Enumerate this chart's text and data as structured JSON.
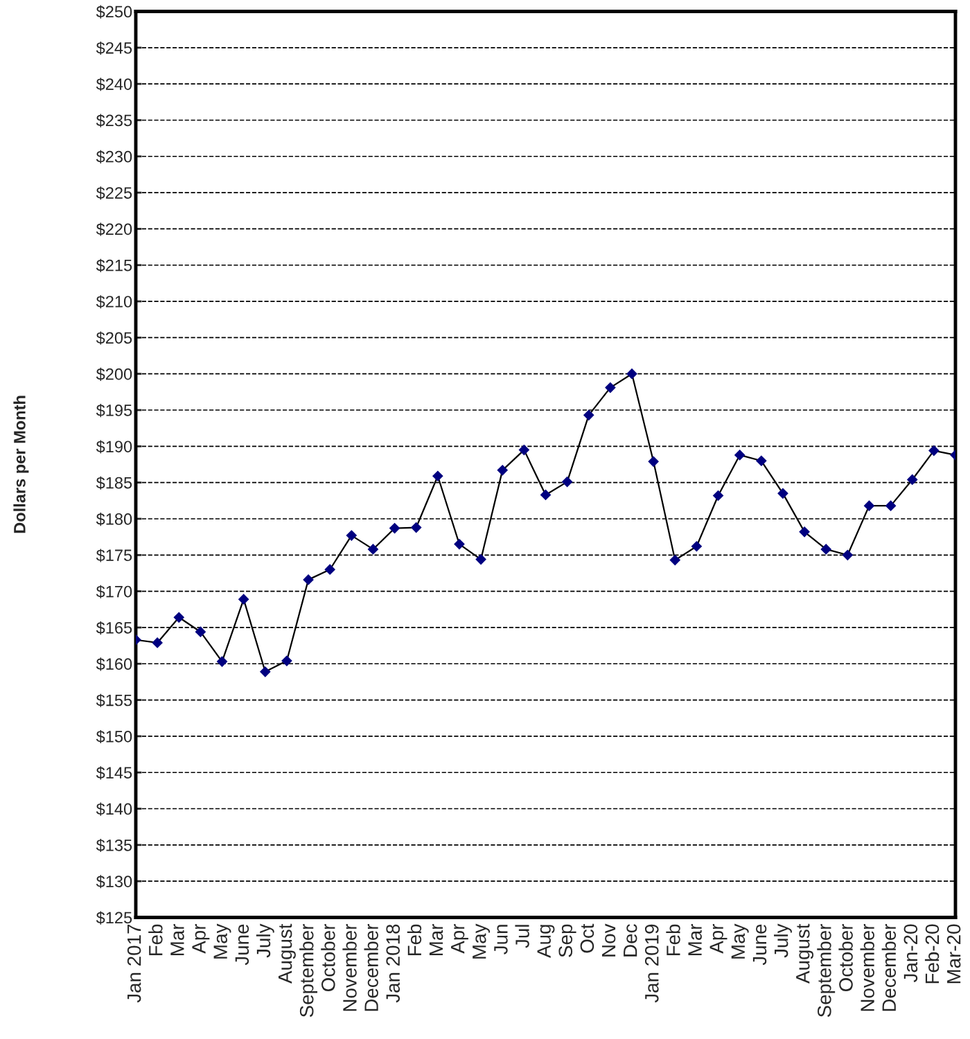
{
  "chart_data": {
    "type": "line",
    "ylabel": "Dollars per Month",
    "categories": [
      "Jan 2017",
      "Feb",
      "Mar",
      "Apr",
      "May",
      "June",
      "July",
      "August",
      "September",
      "October",
      "November",
      "December",
      "Jan 2018",
      "Feb",
      "Mar",
      "Apr",
      "May",
      "Jun",
      "Jul",
      "Aug",
      "Sep",
      "Oct",
      "Nov",
      "Dec",
      "Jan 2019",
      "Feb",
      "Mar",
      "Apr",
      "May",
      "June",
      "July",
      "August",
      "September",
      "October",
      "November",
      "December",
      "Jan-20",
      "Feb-20",
      "Mar-20"
    ],
    "series": [
      {
        "color": "#000080",
        "values": [
          163.3,
          162.9,
          166.4,
          164.4,
          160.3,
          168.9,
          158.9,
          160.4,
          171.6,
          173.0,
          177.7,
          175.8,
          178.7,
          178.8,
          185.9,
          176.5,
          174.4,
          186.7,
          189.5,
          183.3,
          185.1,
          194.3,
          198.1,
          200.0,
          187.9,
          174.3,
          176.2,
          183.2,
          188.8,
          188.0,
          183.5,
          178.2,
          175.8,
          175.0,
          181.8,
          181.8,
          185.4,
          189.4,
          188.8
        ]
      }
    ],
    "ylim": [
      125,
      250
    ],
    "yticks": [
      {
        "value": 125,
        "label": "$125"
      },
      {
        "value": 130,
        "label": "$130"
      },
      {
        "value": 135,
        "label": "$135"
      },
      {
        "value": 140,
        "label": "$140"
      },
      {
        "value": 145,
        "label": "$145"
      },
      {
        "value": 150,
        "label": "$150"
      },
      {
        "value": 155,
        "label": "$155"
      },
      {
        "value": 160,
        "label": "$160"
      },
      {
        "value": 165,
        "label": "$165"
      },
      {
        "value": 170,
        "label": "$170"
      },
      {
        "value": 175,
        "label": "$175"
      },
      {
        "value": 180,
        "label": "$180"
      },
      {
        "value": 185,
        "label": "$185"
      },
      {
        "value": 190,
        "label": "$190"
      },
      {
        "value": 195,
        "label": "$195"
      },
      {
        "value": 200,
        "label": "$200"
      },
      {
        "value": 205,
        "label": "$205"
      },
      {
        "value": 210,
        "label": "$210"
      },
      {
        "value": 215,
        "label": "$215"
      },
      {
        "value": 220,
        "label": "$220"
      },
      {
        "value": 225,
        "label": "$225"
      },
      {
        "value": 230,
        "label": "$230"
      },
      {
        "value": 235,
        "label": "$235"
      },
      {
        "value": 240,
        "label": "$240"
      },
      {
        "value": 245,
        "label": "$245"
      },
      {
        "value": 250,
        "label": "$250"
      }
    ],
    "grid": "y",
    "marker": "diamond",
    "line_style": "solid",
    "legend": false
  }
}
